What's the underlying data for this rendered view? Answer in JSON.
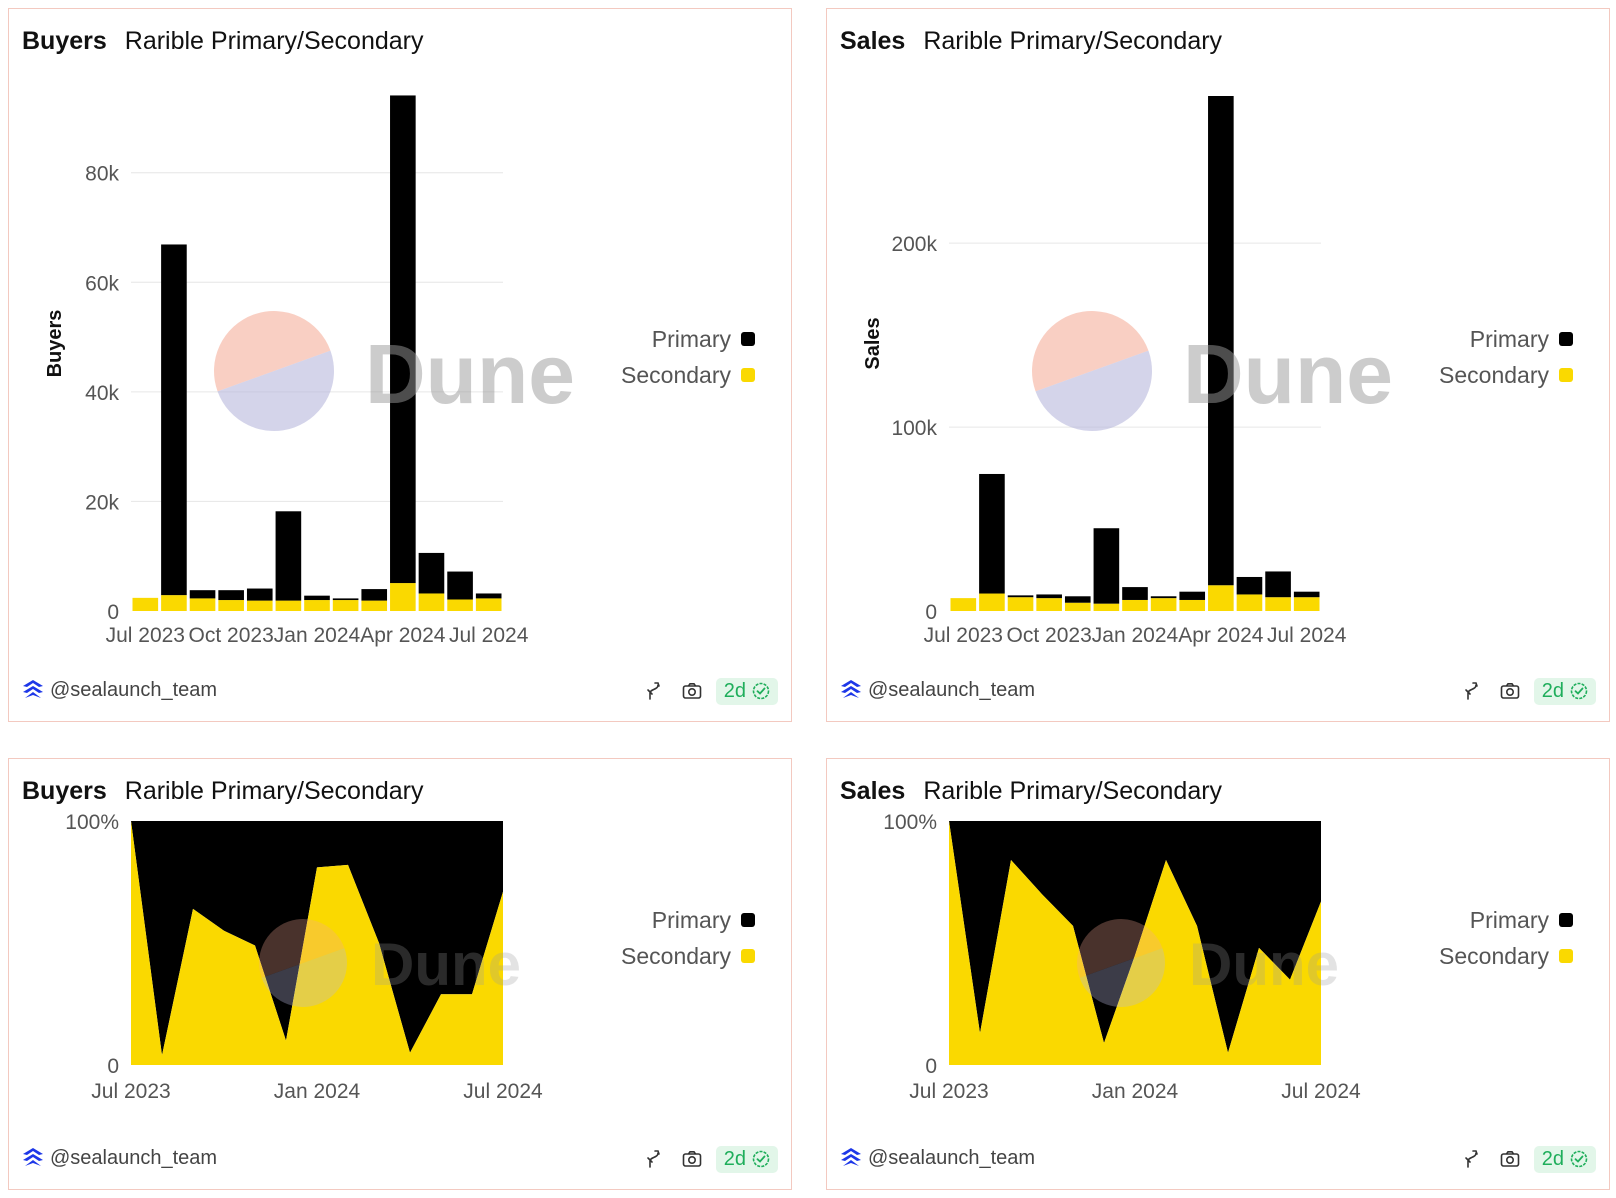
{
  "colors": {
    "primary": "#000000",
    "secondary": "#fad900",
    "grid": "#e6e6e6",
    "axis_text": "#555555",
    "border": "#f3c9c0",
    "badge_text": "#1fae5b",
    "badge_bg": "#e2f6e9"
  },
  "watermark": {
    "text": "Dune"
  },
  "cards": [
    {
      "metric": "Buyers",
      "subtitle": "Rarible Primary/Secondary",
      "author": "@sealaunch_team",
      "freshness": "2d",
      "legend": [
        {
          "label": "Primary",
          "color": "#000000"
        },
        {
          "label": "Secondary",
          "color": "#fad900"
        }
      ],
      "chart_data": {
        "type": "bar",
        "stacked": true,
        "ylabel": "Buyers",
        "ylim": [
          0,
          94000
        ],
        "yticks": [
          0,
          20000,
          40000,
          60000,
          80000
        ],
        "ytick_labels": [
          "0",
          "20k",
          "40k",
          "60k",
          "80k"
        ],
        "categories": [
          "2023-07",
          "2023-08",
          "2023-09",
          "2023-10",
          "2023-11",
          "2023-12",
          "2024-01",
          "2024-02",
          "2024-03",
          "2024-04",
          "2024-05",
          "2024-06",
          "2024-07"
        ],
        "xtick_labels": [
          {
            "index": 0,
            "label": "Jul 2023"
          },
          {
            "index": 3,
            "label": "Oct 2023"
          },
          {
            "index": 6,
            "label": "Jan 2024"
          },
          {
            "index": 9,
            "label": "Apr 2024"
          },
          {
            "index": 12,
            "label": "Jul 2024"
          }
        ],
        "series": [
          {
            "name": "Secondary",
            "color": "#fad900",
            "values": [
              2400,
              2900,
              2300,
              2000,
              1900,
              1900,
              2000,
              2000,
              1900,
              5100,
              3200,
              2100,
              2300
            ]
          },
          {
            "name": "Primary",
            "color": "#000000",
            "values": [
              0,
              64000,
              1500,
              1800,
              2200,
              16300,
              800,
              300,
              2100,
              89000,
              7400,
              5100,
              900
            ]
          }
        ],
        "grid": true,
        "legend_position": "right"
      }
    },
    {
      "metric": "Sales",
      "subtitle": "Rarible Primary/Secondary",
      "author": "@sealaunch_team",
      "freshness": "2d",
      "legend": [
        {
          "label": "Primary",
          "color": "#000000"
        },
        {
          "label": "Secondary",
          "color": "#fad900"
        }
      ],
      "chart_data": {
        "type": "bar",
        "stacked": true,
        "ylabel": "Sales",
        "ylim": [
          0,
          280000
        ],
        "yticks": [
          0,
          100000,
          200000
        ],
        "ytick_labels": [
          "0",
          "100k",
          "200k"
        ],
        "categories": [
          "2023-07",
          "2023-08",
          "2023-09",
          "2023-10",
          "2023-11",
          "2023-12",
          "2024-01",
          "2024-02",
          "2024-03",
          "2024-04",
          "2024-05",
          "2024-06",
          "2024-07"
        ],
        "xtick_labels": [
          {
            "index": 0,
            "label": "Jul 2023"
          },
          {
            "index": 3,
            "label": "Oct 2023"
          },
          {
            "index": 6,
            "label": "Jan 2024"
          },
          {
            "index": 9,
            "label": "Apr 2024"
          },
          {
            "index": 12,
            "label": "Jul 2024"
          }
        ],
        "series": [
          {
            "name": "Secondary",
            "color": "#fad900",
            "values": [
              7000,
              9500,
              7500,
              7000,
              4500,
              4000,
              6000,
              7000,
              6000,
              14000,
              9000,
              7500,
              7500
            ]
          },
          {
            "name": "Primary",
            "color": "#000000",
            "values": [
              0,
              65000,
              1000,
              2000,
              3500,
              41000,
              7000,
              1000,
              4500,
              266000,
              9500,
              14000,
              3000
            ]
          }
        ],
        "grid": true,
        "legend_position": "right"
      }
    },
    {
      "metric": "Buyers",
      "subtitle": "Rarible Primary/Secondary",
      "author": "@sealaunch_team",
      "freshness": "2d",
      "legend": [
        {
          "label": "Primary",
          "color": "#000000"
        },
        {
          "label": "Secondary",
          "color": "#fad900"
        }
      ],
      "chart_data": {
        "type": "area",
        "stacked": true,
        "normalized": true,
        "ylim": [
          0,
          100
        ],
        "ytick_labels": [
          "0",
          "100%"
        ],
        "x": [
          "2023-07",
          "2023-08",
          "2023-09",
          "2023-10",
          "2023-11",
          "2023-12",
          "2024-01",
          "2024-02",
          "2024-03",
          "2024-04",
          "2024-05",
          "2024-06",
          "2024-07"
        ],
        "xtick_labels": [
          {
            "index": 0,
            "label": "Jul 2023"
          },
          {
            "index": 6,
            "label": "Jan 2024"
          },
          {
            "index": 12,
            "label": "Jul 2024"
          }
        ],
        "series": [
          {
            "name": "Secondary",
            "color": "#fad900",
            "values": [
              100,
              4,
              64,
              55,
              49,
              10,
              81,
              82,
              50,
              5,
              29,
              29,
              71
            ]
          },
          {
            "name": "Primary",
            "color": "#000000",
            "values": [
              0,
              96,
              36,
              45,
              51,
              90,
              19,
              18,
              50,
              95,
              71,
              71,
              29
            ]
          }
        ],
        "grid": false,
        "legend_position": "right"
      }
    },
    {
      "metric": "Sales",
      "subtitle": "Rarible Primary/Secondary",
      "author": "@sealaunch_team",
      "freshness": "2d",
      "legend": [
        {
          "label": "Primary",
          "color": "#000000"
        },
        {
          "label": "Secondary",
          "color": "#fad900"
        }
      ],
      "chart_data": {
        "type": "area",
        "stacked": true,
        "normalized": true,
        "ylim": [
          0,
          100
        ],
        "ytick_labels": [
          "0",
          "100%"
        ],
        "x": [
          "2023-07",
          "2023-08",
          "2023-09",
          "2023-10",
          "2023-11",
          "2023-12",
          "2024-01",
          "2024-02",
          "2024-03",
          "2024-04",
          "2024-05",
          "2024-06",
          "2024-07"
        ],
        "xtick_labels": [
          {
            "index": 0,
            "label": "Jul 2023"
          },
          {
            "index": 6,
            "label": "Jan 2024"
          },
          {
            "index": 12,
            "label": "Jul 2024"
          }
        ],
        "series": [
          {
            "name": "Secondary",
            "color": "#fad900",
            "values": [
              100,
              13,
              84,
              70,
              57,
              9,
              45,
              84,
              57,
              5,
              48,
              35,
              67
            ]
          },
          {
            "name": "Primary",
            "color": "#000000",
            "values": [
              0,
              87,
              16,
              30,
              43,
              91,
              55,
              16,
              43,
              95,
              52,
              65,
              33
            ]
          }
        ],
        "grid": false,
        "legend_position": "right"
      }
    }
  ]
}
